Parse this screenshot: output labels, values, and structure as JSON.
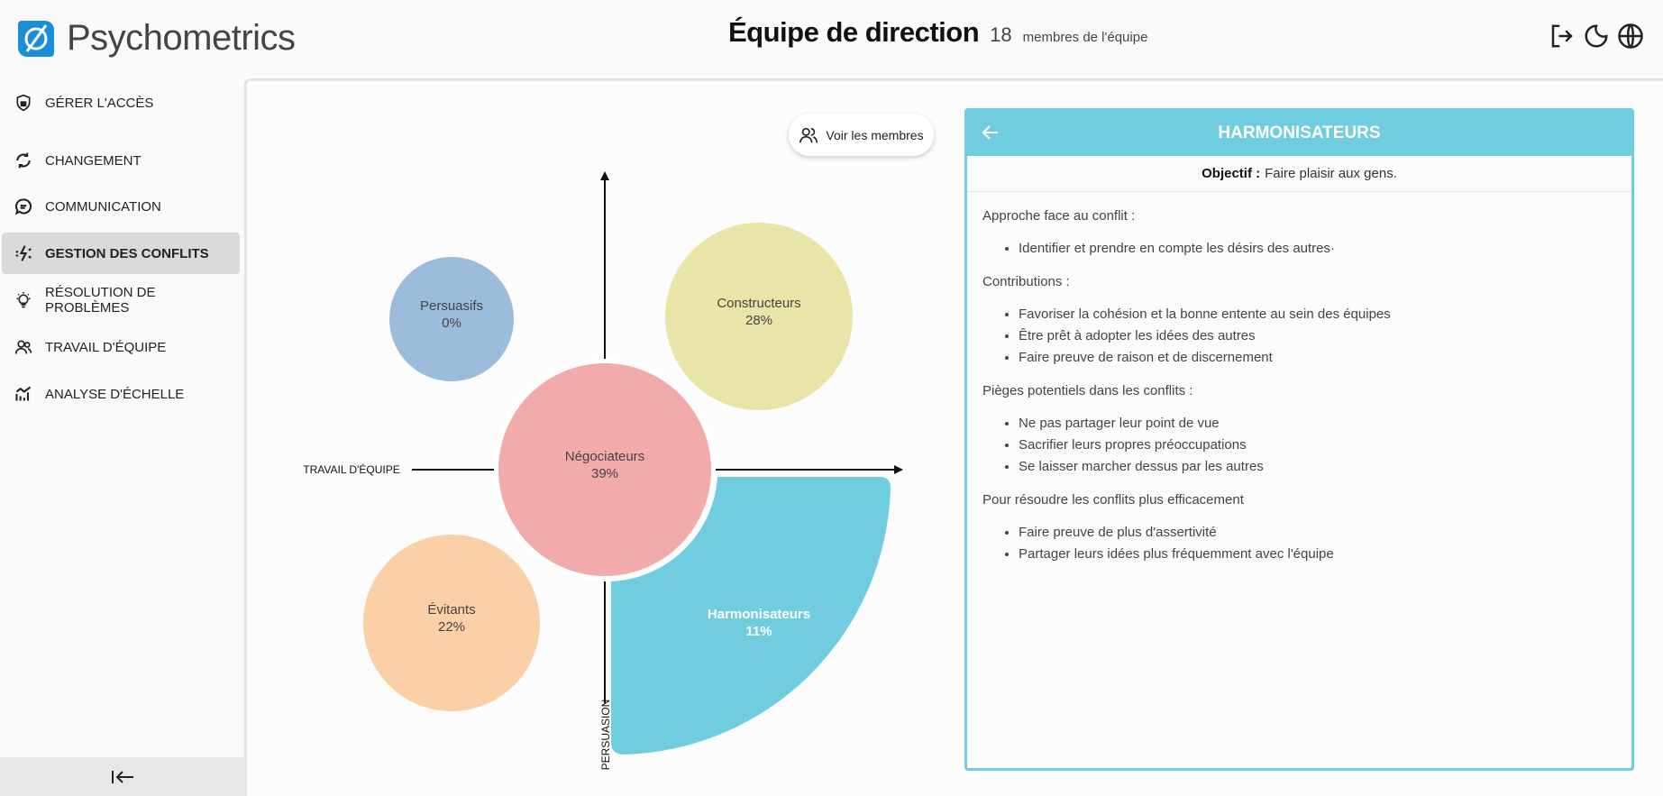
{
  "app": {
    "name": "Psychometrics",
    "logo_symbol": "Ø"
  },
  "header": {
    "title": "Équipe de direction",
    "member_count": "18",
    "member_label": "membres de l'équipe",
    "icons": [
      "logout-icon",
      "moon-icon",
      "globe-icon"
    ]
  },
  "sidebar": {
    "items": [
      {
        "label": "GÉRER L'ACCÈS",
        "icon": "shield-lock-icon"
      },
      {
        "label": "CHANGEMENT",
        "icon": "refresh-icon"
      },
      {
        "label": "COMMUNICATION",
        "icon": "chat-icon"
      },
      {
        "label": "GESTION DES CONFLITS",
        "icon": "conflict-icon",
        "active": true
      },
      {
        "label": "RÉSOLUTION DE PROBLÈMES",
        "icon": "lightbulb-icon"
      },
      {
        "label": "TRAVAIL D'ÉQUIPE",
        "icon": "users-icon"
      },
      {
        "label": "ANALYSE D'ÉCHELLE",
        "icon": "chart-icon"
      }
    ],
    "collapse_icon": "collapse-left-icon"
  },
  "main": {
    "members_button": "Voir les membres"
  },
  "chart_data": {
    "type": "bubble-quadrant",
    "x_axis_label": "TRAVAIL D'ÉQUIPE",
    "y_axis_label": "PERSUASION",
    "selected": "Harmonisateurs",
    "segments": [
      {
        "name": "Persuasifs",
        "value": 0,
        "quadrant": "top-left",
        "color": "#9bbcdb"
      },
      {
        "name": "Constructeurs",
        "value": 28,
        "quadrant": "top-right",
        "color": "#e9e5a9"
      },
      {
        "name": "Négociateurs",
        "value": 39,
        "quadrant": "center",
        "color": "#f3aaab"
      },
      {
        "name": "Évitants",
        "value": 22,
        "quadrant": "bottom-left",
        "color": "#fbd0a6"
      },
      {
        "name": "Harmonisateurs",
        "value": 11,
        "quadrant": "bottom-right",
        "color": "#70cde0"
      }
    ]
  },
  "panel": {
    "title": "HARMONISATEURS",
    "objective_label": "Objectif :",
    "objective_text": "Faire plaisir aux gens.",
    "accent": "#70cde0",
    "sections": [
      {
        "title": "Approche face au conflit :",
        "items": [
          "Identifier et prendre en compte les désirs des autres·"
        ]
      },
      {
        "title": "Contributions :",
        "items": [
          "Favoriser la cohésion et la bonne entente au sein des équipes",
          "Être prêt à adopter les idées des autres",
          "Faire preuve de raison et de discernement"
        ]
      },
      {
        "title": "Pièges potentiels dans les conflits :",
        "items": [
          "Ne pas partager leur point de vue",
          "Sacrifier leurs propres préoccupations",
          "Se laisser marcher dessus par les autres"
        ]
      },
      {
        "title": "Pour résoudre les conflits plus efficacement",
        "items": [
          "Faire preuve de plus d'assertivité",
          "Partager leurs idées plus fréquemment avec l'équipe"
        ]
      }
    ]
  }
}
